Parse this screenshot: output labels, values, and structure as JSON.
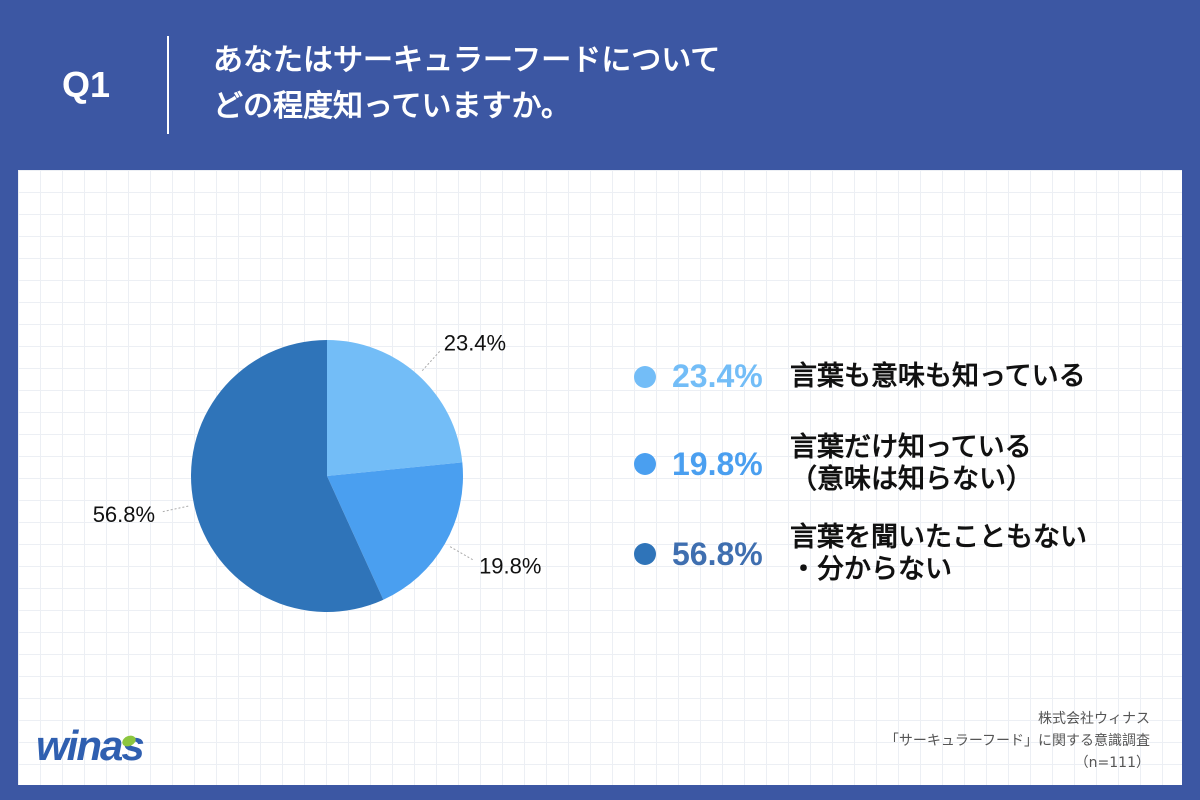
{
  "header": {
    "q_label": "Q1",
    "title_line1": "あなたはサーキュラーフードについて",
    "title_line2": "どの程度知っていますか。"
  },
  "chart_data": {
    "type": "pie",
    "title": "",
    "slices": [
      {
        "label_line1": "言葉も意味も知っている",
        "label_line2": "",
        "value": 23.4,
        "display": "23.4%",
        "color": "#73bdf7"
      },
      {
        "label_line1": "言葉だけ知っている",
        "label_line2": "（意味は知らない）",
        "value": 19.8,
        "display": "19.8%",
        "color": "#4a9ff0"
      },
      {
        "label_line1": "言葉を聞いたこともない",
        "label_line2": "・分からない",
        "value": 56.8,
        "display": "56.8%",
        "color": "#2f74b9"
      }
    ],
    "start_angle_deg": 0,
    "direction": "clockwise",
    "legend_placement": "right"
  },
  "legend_pct_colors": [
    "#73bdf7",
    "#4a9ff0",
    "#3f6fb0"
  ],
  "source": {
    "company": "株式会社ウィナス",
    "survey": "「サーキュラーフード」に関する意識調査",
    "sample": "（n=111）"
  },
  "logo": {
    "text": "winas",
    "accent_color": "#8cc63f"
  }
}
